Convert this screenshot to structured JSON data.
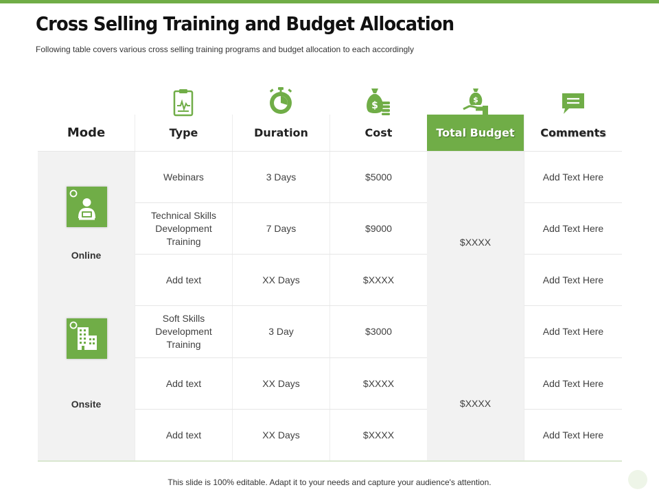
{
  "slide": {
    "title": "Cross Selling Training and Budget Allocation",
    "subtitle": "Following table covers various cross selling training programs and budget allocation to each accordingly",
    "footer": "This slide is 100% editable. Adapt it to your needs and capture your audience's attention.",
    "accent_color": "#70ad47"
  },
  "table": {
    "headers": {
      "mode": "Mode",
      "type": "Type",
      "duration": "Duration",
      "cost": "Cost",
      "total_budget": "Total Budget",
      "comments": "Comments"
    },
    "header_icons": [
      "clipboard-icon",
      "stopwatch-icon",
      "money-bag-coins-icon",
      "money-hand-icon",
      "chat-bubble-icon"
    ],
    "modes": [
      {
        "label": "Online",
        "icon": "online-user-icon",
        "total_budget": "$XXXX"
      },
      {
        "label": "Onsite",
        "icon": "office-building-icon",
        "total_budget": "$XXXX"
      }
    ],
    "rows": [
      {
        "type": "Webinars",
        "duration": "3 Days",
        "cost": "$5000",
        "comment": "Add Text Here"
      },
      {
        "type": "Technical Skills Development Training",
        "duration": "7 Days",
        "cost": "$9000",
        "comment": "Add Text Here"
      },
      {
        "type": "Add text",
        "duration": "XX Days",
        "cost": "$XXXX",
        "comment": "Add Text Here"
      },
      {
        "type": "Soft Skills Development Training",
        "duration": "3 Day",
        "cost": "$3000",
        "comment": "Add Text Here"
      },
      {
        "type": "Add text",
        "duration": "XX Days",
        "cost": "$XXXX",
        "comment": "Add Text Here"
      },
      {
        "type": "Add text",
        "duration": "XX Days",
        "cost": "$XXXX",
        "comment": "Add Text Here"
      }
    ]
  }
}
